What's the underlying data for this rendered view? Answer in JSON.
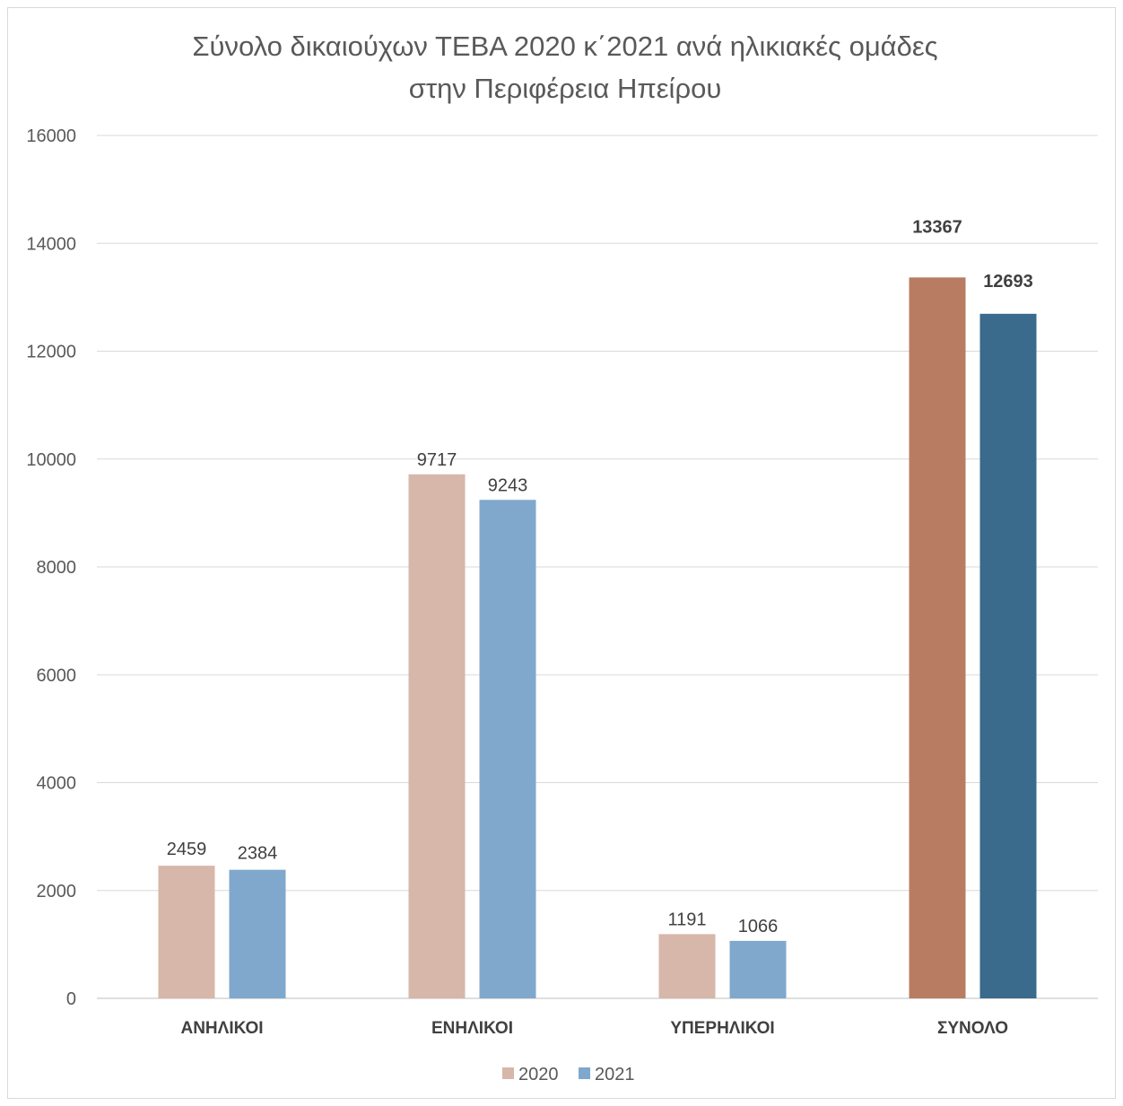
{
  "chart_data": {
    "type": "bar",
    "title_lines": [
      "Σύνολο δικαιούχων ΤΕΒΑ 2020 κ΄2021 ανά ηλικιακές ομάδες",
      "στην Περιφέρεια Ηπείρου"
    ],
    "categories": [
      "ΑΝΗΛΙΚΟΙ",
      "ΕΝΗΛΙΚΟΙ",
      "ΥΠΕΡΗΛΙΚΟΙ",
      "ΣΥΝΟΛΟ"
    ],
    "series": [
      {
        "name": "2020",
        "values": [
          2459,
          9717,
          1191,
          13367
        ],
        "color": "#d6b7aa",
        "point_colors": [
          "#d6b7aa",
          "#d6b7aa",
          "#d6b7aa",
          "#b87c63"
        ]
      },
      {
        "name": "2021",
        "values": [
          2384,
          9243,
          1066,
          12693
        ],
        "color": "#7fa8cc",
        "point_colors": [
          "#7fa8cc",
          "#7fa8cc",
          "#7fa8cc",
          "#3a6a8c"
        ]
      }
    ],
    "bold_label_categories": [
      "ΣΥΝΟΛΟ"
    ],
    "ylim": [
      0,
      16000
    ],
    "yticks": [
      "0",
      "2000",
      "4000",
      "6000",
      "8000",
      "10000",
      "12000",
      "14000",
      "16000"
    ],
    "grid": true,
    "legend_position": "bottom"
  }
}
